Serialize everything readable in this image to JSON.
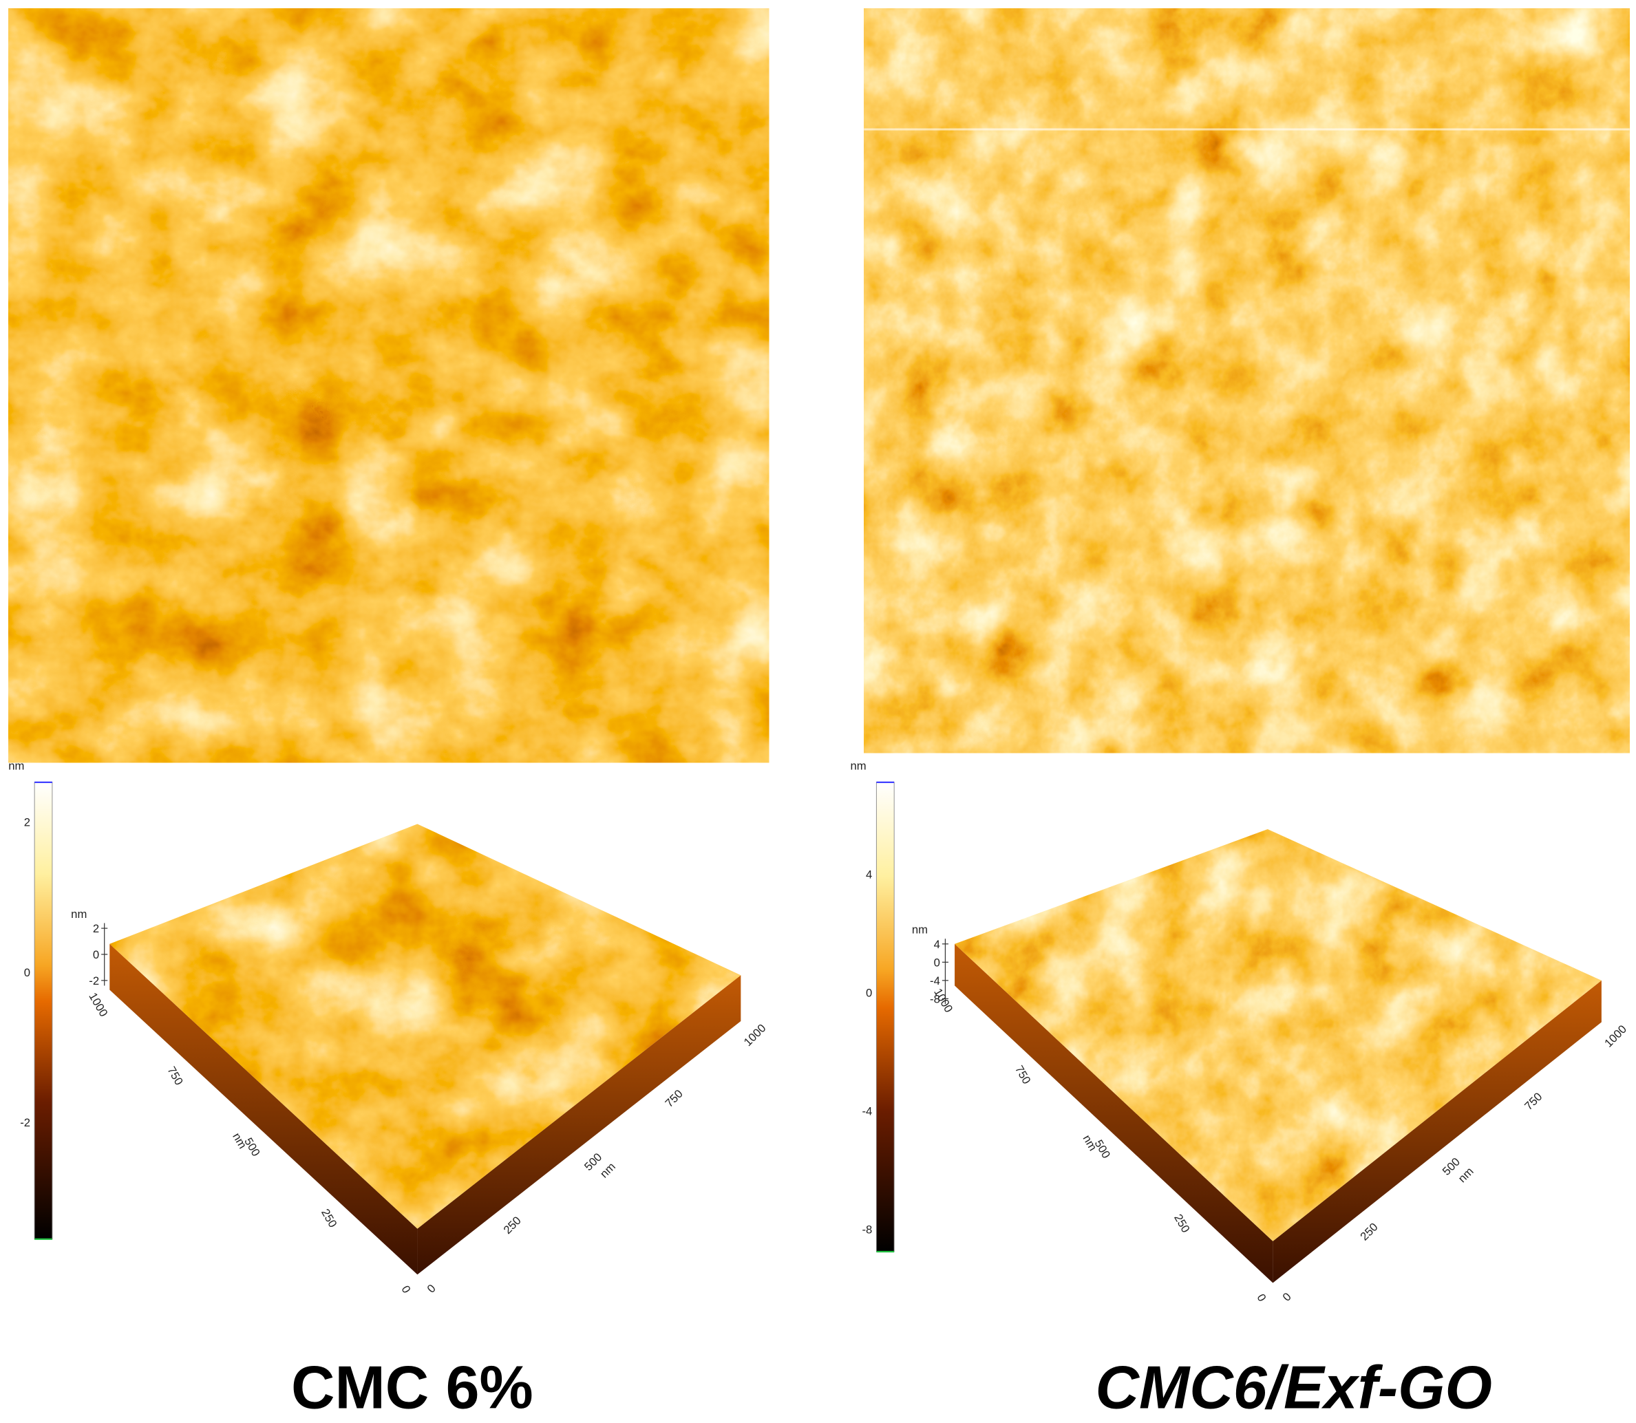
{
  "panels": [
    {
      "colorbar": {
        "unit": "nm",
        "ticks": [
          2,
          0,
          -2
        ]
      },
      "surface": {
        "z_unit": "nm",
        "z_ticks": [
          2,
          0,
          -2
        ],
        "y_axis": {
          "unit": "nm",
          "ticks": [
            1000,
            750,
            500,
            250,
            0
          ]
        },
        "x_axis": {
          "unit": "nm",
          "ticks": [
            0,
            250,
            500,
            750,
            1000
          ]
        }
      },
      "caption": "CMC 6%"
    },
    {
      "colorbar": {
        "unit": "nm",
        "ticks": [
          4,
          0,
          -4,
          -8
        ]
      },
      "surface": {
        "z_unit": "nm",
        "z_ticks": [
          4,
          0,
          -4,
          -8
        ],
        "y_axis": {
          "unit": "nm",
          "ticks": [
            1000,
            750,
            500,
            250,
            0
          ]
        },
        "x_axis": {
          "unit": "nm",
          "ticks": [
            0,
            250,
            500,
            750,
            1000
          ]
        }
      },
      "caption": "CMC6/Exf-GO"
    }
  ]
}
